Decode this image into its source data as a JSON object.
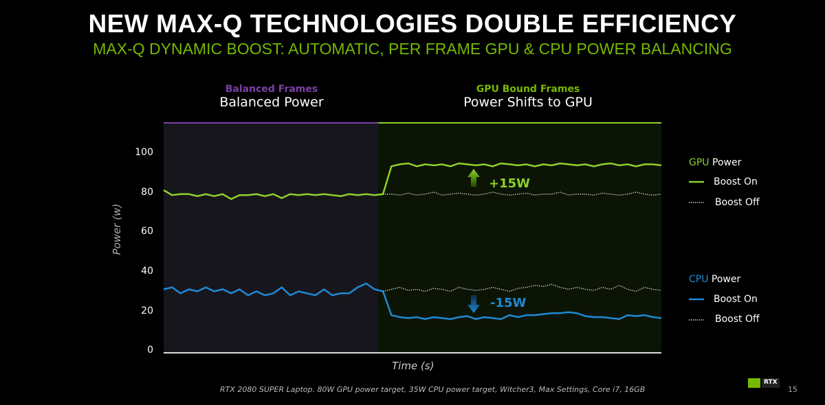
{
  "title": "NEW MAX-Q TECHNOLOGIES DOUBLE EFFICIENCY",
  "subtitle": "MAX-Q DYNAMIC BOOST: AUTOMATIC, PER FRAME GPU & CPU POWER BALANCING",
  "sections": [
    {
      "kicker": "Balanced Frames",
      "label": "Balanced Power"
    },
    {
      "kicker": "GPU Bound Frames",
      "label": "Power Shifts to GPU"
    }
  ],
  "annotations": {
    "gpu": "+15W",
    "cpu": "-15W"
  },
  "legend": {
    "gpu_title_a": "GPU",
    "gpu_title_b": "Power",
    "cpu_title_a": "CPU",
    "cpu_title_b": "Power",
    "on": "Boost On",
    "off": "Boost Off"
  },
  "footnote": "RTX 2080 SUPER Laptop. 80W GPU power target, 35W CPU power target, Witcher3, Max Settings, Core i7, 16GB",
  "page_number": "15",
  "logo_text": "RTX",
  "colors": {
    "gpu": "#8fd12c",
    "cpu": "#1e8ad6",
    "balanced": "#7b3fa8",
    "gpu_bound": "#76b900"
  },
  "chart_data": {
    "type": "line",
    "xlabel": "Time (s)",
    "ylabel": "Power (w)",
    "ylim": [
      0,
      100
    ],
    "yticks": [
      "0",
      "20",
      "40",
      "60",
      "80",
      "100"
    ],
    "split_index": 26,
    "series": [
      {
        "name": "GPU Power Boost On",
        "values": [
          82,
          79.5,
          80,
          80,
          79,
          80,
          79,
          80,
          77.5,
          79.5,
          79.5,
          80,
          79,
          80,
          78,
          80,
          79.5,
          80,
          79.5,
          80,
          79.5,
          79,
          80,
          79.5,
          80,
          79.5,
          80,
          94,
          95,
          95.5,
          94,
          95,
          94.5,
          95,
          94,
          95.5,
          95,
          94.5,
          95,
          94,
          95.5,
          95,
          94.5,
          95,
          94,
          95,
          94.5,
          95.5,
          95,
          94.5,
          95,
          94,
          95,
          95.5,
          94.5,
          95,
          94,
          95,
          95,
          94.5
        ]
      },
      {
        "name": "GPU Power Boost Off",
        "values": [
          null,
          null,
          null,
          null,
          null,
          null,
          null,
          null,
          null,
          null,
          null,
          null,
          null,
          null,
          null,
          null,
          null,
          null,
          null,
          null,
          null,
          null,
          null,
          null,
          null,
          null,
          80,
          80,
          79.5,
          80.5,
          79.5,
          80,
          81,
          79.5,
          80,
          80.5,
          80,
          79.5,
          80,
          81,
          80,
          79.5,
          80,
          80.5,
          79.5,
          80,
          80,
          81,
          79.5,
          80,
          80,
          79.5,
          80.5,
          80,
          79.5,
          80,
          81,
          80,
          79.5,
          80
        ]
      },
      {
        "name": "CPU Power Boost On",
        "values": [
          32,
          33,
          30,
          32,
          31,
          33,
          31,
          32,
          30,
          32,
          29,
          31,
          29,
          30,
          33,
          29,
          31,
          30,
          29,
          32,
          29,
          30,
          30,
          33,
          35,
          32,
          31,
          19,
          18,
          17.5,
          18,
          17,
          18,
          17.5,
          17,
          18,
          18.5,
          17,
          18,
          17.5,
          17,
          19,
          18,
          19,
          19,
          19.5,
          20,
          20,
          20.5,
          20,
          18.5,
          18,
          18,
          17.5,
          17,
          19,
          18.5,
          19,
          18,
          17.5
        ]
      },
      {
        "name": "CPU Power Boost Off",
        "values": [
          null,
          null,
          null,
          null,
          null,
          null,
          null,
          null,
          null,
          null,
          null,
          null,
          null,
          null,
          null,
          null,
          null,
          null,
          null,
          null,
          null,
          null,
          null,
          null,
          null,
          null,
          31,
          32,
          33,
          31.5,
          32,
          31,
          32.5,
          32,
          31,
          33,
          32,
          31.5,
          32,
          33,
          32,
          31,
          32.5,
          33,
          34,
          33.5,
          34.5,
          33,
          32,
          33,
          32,
          31.5,
          33,
          32,
          34,
          32,
          31,
          33,
          32,
          31.5
        ]
      }
    ]
  }
}
